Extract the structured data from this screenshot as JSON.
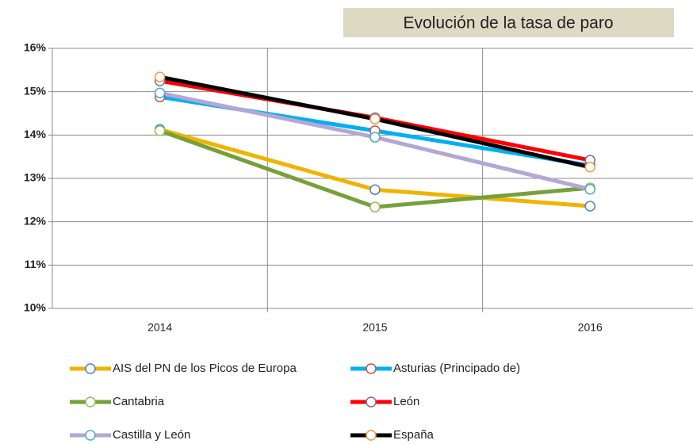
{
  "chart_data": {
    "type": "line",
    "title": "Evolución de la tasa de paro",
    "categories": [
      "2014",
      "2015",
      "2016"
    ],
    "ylim": [
      10,
      16
    ],
    "yticks": [
      {
        "value": 10,
        "label": "10%"
      },
      {
        "value": 11,
        "label": "11%"
      },
      {
        "value": 12,
        "label": "12%"
      },
      {
        "value": 13,
        "label": "13%"
      },
      {
        "value": 14,
        "label": "14%"
      },
      {
        "value": 15,
        "label": "15%"
      },
      {
        "value": 16,
        "label": "16%"
      }
    ],
    "grid": true,
    "series": [
      {
        "name": "AIS del PN de los Picos de Europa",
        "color": "#f0b400",
        "marker_color": "#4f81bd",
        "values": [
          14.13,
          12.74,
          12.36
        ]
      },
      {
        "name": "Asturias (Principado de)",
        "color": "#00b0f0",
        "marker_color": "#c0504d",
        "values": [
          14.88,
          14.1,
          13.3
        ]
      },
      {
        "name": "Cantabria",
        "color": "#77a03b",
        "marker_color": "#9bbb59",
        "values": [
          14.1,
          12.34,
          12.78
        ]
      },
      {
        "name": "León",
        "color": "#ff0000",
        "marker_color": "#8064a2",
        "values": [
          15.25,
          14.4,
          13.42
        ]
      },
      {
        "name": "Castilla y León",
        "color": "#b4a7d6",
        "marker_color": "#4bacc6",
        "values": [
          14.97,
          13.95,
          12.75
        ]
      },
      {
        "name": "España",
        "color": "#000000",
        "marker_color": "#f79646",
        "values": [
          15.34,
          14.37,
          13.26
        ]
      }
    ]
  }
}
